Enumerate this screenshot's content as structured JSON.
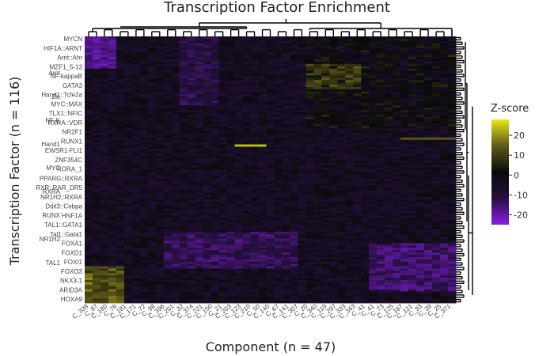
{
  "chart_data": {
    "type": "heatmap",
    "title": "Transcription Factor Enrichment",
    "xlabel": "Component (n = 47)",
    "ylabel": "Transcription Factor (n = 116)",
    "n_rows": 116,
    "n_cols": 47,
    "colorbar": {
      "title": "Z-score",
      "ticks": [
        20,
        10,
        0,
        -10,
        -20
      ],
      "range": [
        -25,
        28
      ],
      "colors": [
        "#8a1be8",
        "#25113f",
        "#0a0a0a",
        "#5e5a18",
        "#e8e814"
      ]
    },
    "x_tick_labels": [
      "C_338",
      "C_87",
      "C_180",
      "C_76",
      "C_181",
      "C_171",
      "C_72",
      "C_98",
      "C_396",
      "C_201",
      "C_32",
      "C_374",
      "C_221",
      "C_150",
      "C_21",
      "C_203",
      "C_123",
      "C_210",
      "C_50",
      "C_140",
      "C_67",
      "C_141",
      "C_307",
      "C_20",
      "C_340",
      "C_119",
      "C_297",
      "C_333",
      "C_343",
      "C_41",
      "C_41",
      "C_73",
      "C_125",
      "C_167",
      "C_121",
      "C_93",
      "C_39",
      "C_25",
      "C_371"
    ],
    "y_tick_labels": [
      "MYCN",
      "HIF1A::ARNT",
      "Arnt::Ahr",
      "MZF1_5-13",
      "NF-kappaB",
      "GATA3",
      "Hand1::Tcfe2a",
      "MYC::MAX",
      "TLX1::NFIC",
      "RXRA::VDR",
      "NR2F1",
      "RUNX1",
      "EWSR1-FLI1",
      "ZNF354C",
      "RORA_1",
      "PPARG::RXRA",
      "RXR::RAR_DR5",
      "NR1H2::RXRA",
      "Ddit3::Cebpa",
      "HNF1A",
      "TAL1::GATA1",
      "Tal1::Gata1",
      "FOXA1",
      "FOXD1",
      "FOXI1",
      "FOXO3",
      "NKX3-1",
      "ARID3A",
      "HOXA9"
    ],
    "text_labels": [
      "Arnt",
      "Zic",
      "NF-K",
      "Hand1",
      "MYC",
      "RXRA",
      "RUNX",
      "NR1H2",
      "TAL1"
    ]
  }
}
